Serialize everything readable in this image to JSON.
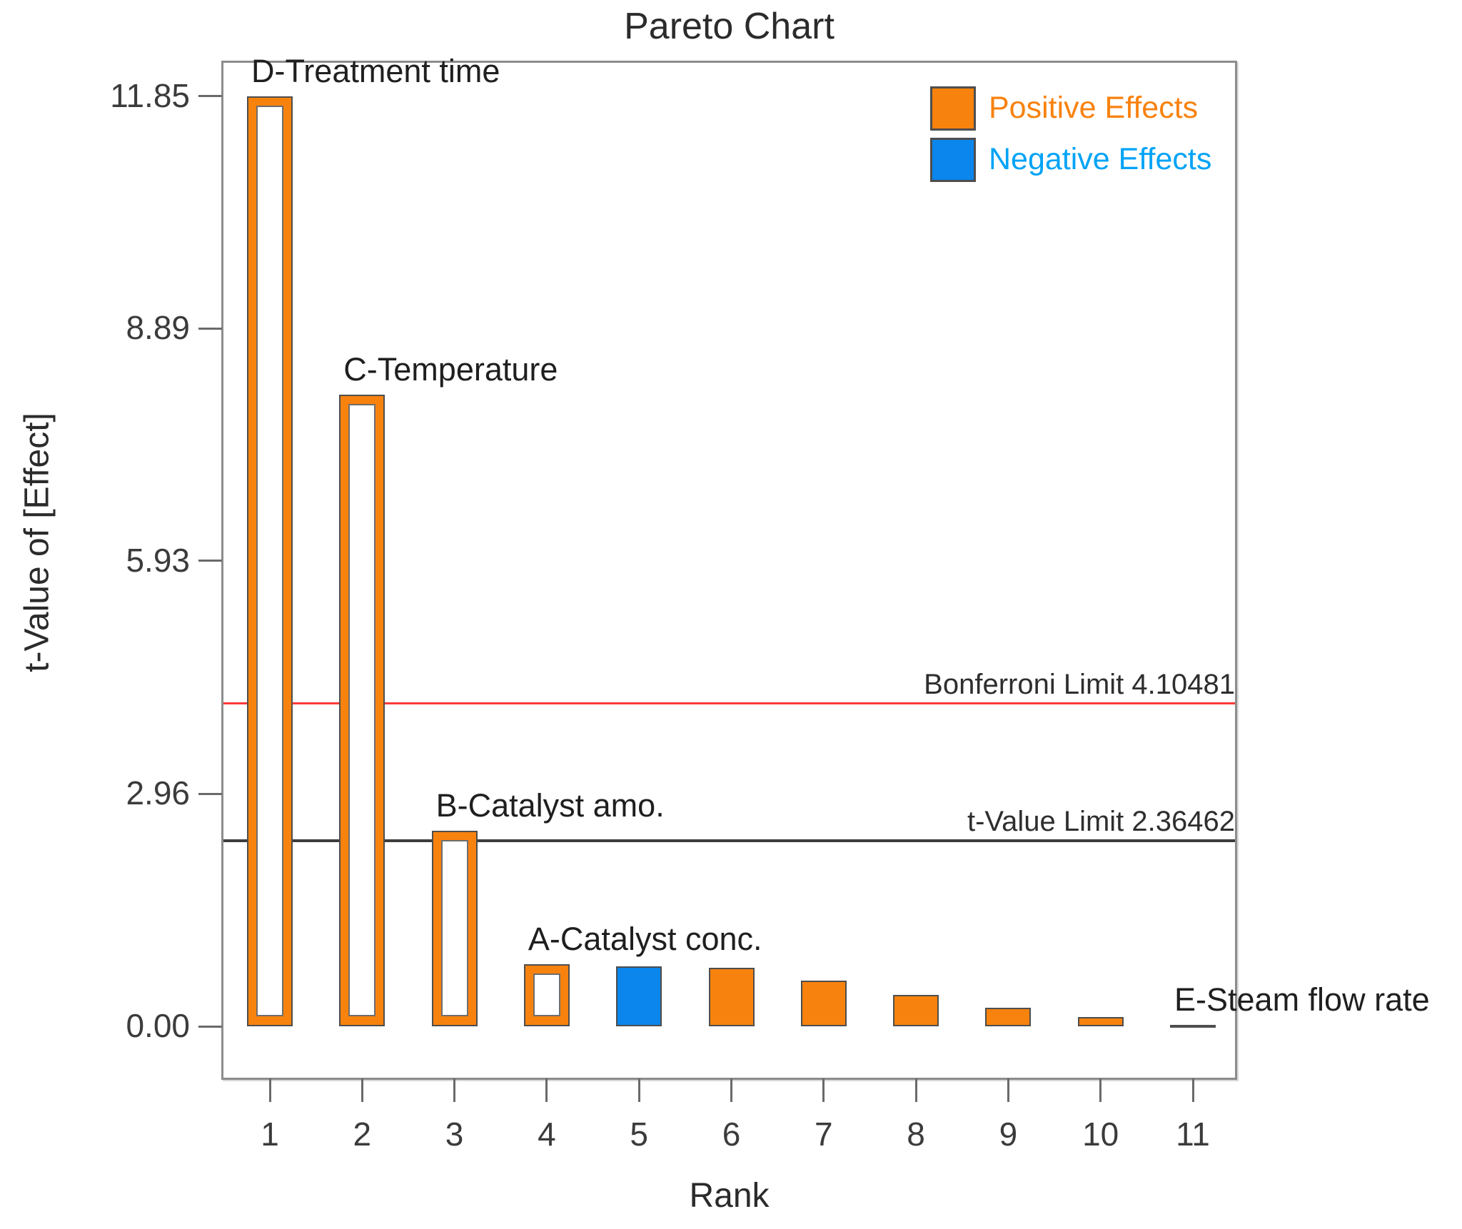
{
  "chart_data": {
    "type": "bar",
    "title": "Pareto Chart",
    "xlabel": "Rank",
    "ylabel": "t-Value of [Effect]",
    "categories": [
      1,
      2,
      3,
      4,
      5,
      6,
      7,
      8,
      9,
      10,
      11
    ],
    "values": [
      11.85,
      8.05,
      2.49,
      0.79,
      0.76,
      0.75,
      0.58,
      0.4,
      0.24,
      0.12,
      0.02
    ],
    "ylim": [
      -0.68,
      12.3
    ],
    "grid": false,
    "legend_position": "top-right-inside",
    "yticks": [
      {
        "label": "0.00",
        "value": 0
      },
      {
        "label": "2.96",
        "value": 2.96
      },
      {
        "label": "5.93",
        "value": 5.93
      },
      {
        "label": "8.89",
        "value": 8.89
      },
      {
        "label": "11.85",
        "value": 11.85
      }
    ],
    "bars": [
      {
        "rank": 1,
        "value": 11.85,
        "label": "D-Treatment time",
        "effect": "positive",
        "fill": "hollow"
      },
      {
        "rank": 2,
        "value": 8.05,
        "label": "C-Temperature",
        "effect": "positive",
        "fill": "hollow"
      },
      {
        "rank": 3,
        "value": 2.49,
        "label": "B-Catalyst amo.",
        "effect": "positive",
        "fill": "hollow"
      },
      {
        "rank": 4,
        "value": 0.79,
        "label": "A-Catalyst conc.",
        "effect": "positive",
        "fill": "hollow"
      },
      {
        "rank": 5,
        "value": 0.76,
        "effect": "negative",
        "fill": "solid"
      },
      {
        "rank": 6,
        "value": 0.75,
        "effect": "positive",
        "fill": "solid"
      },
      {
        "rank": 7,
        "value": 0.58,
        "effect": "positive",
        "fill": "solid"
      },
      {
        "rank": 8,
        "value": 0.4,
        "effect": "positive",
        "fill": "solid"
      },
      {
        "rank": 9,
        "value": 0.24,
        "effect": "positive",
        "fill": "solid"
      },
      {
        "rank": 10,
        "value": 0.12,
        "effect": "positive",
        "fill": "solid"
      },
      {
        "rank": 11,
        "value": 0.02,
        "label": "E-Steam flow rate",
        "effect": "positive",
        "fill": "solid"
      }
    ],
    "reference_lines": [
      {
        "label": "Bonferroni Limit 4.10481",
        "value": 4.10481,
        "color": "#fb3a3a"
      },
      {
        "label": "t-Value Limit 2.36462",
        "value": 2.36462,
        "color": "#3d3d3d"
      }
    ],
    "legend": [
      {
        "label": "Positive Effects",
        "color": "#f8820e",
        "text_color": "#f8820e"
      },
      {
        "label": "Negative Effects",
        "color": "#0a86ed",
        "text_color": "#00a3f6"
      }
    ]
  },
  "colors": {
    "positive": "#f8820e",
    "negative": "#0a86ed",
    "bonferroni_line": "#fb3a3a",
    "t_value_line": "#3d3d3d",
    "bar_outline": "#4e4e4e",
    "plot_border": "#8c8c8c"
  }
}
